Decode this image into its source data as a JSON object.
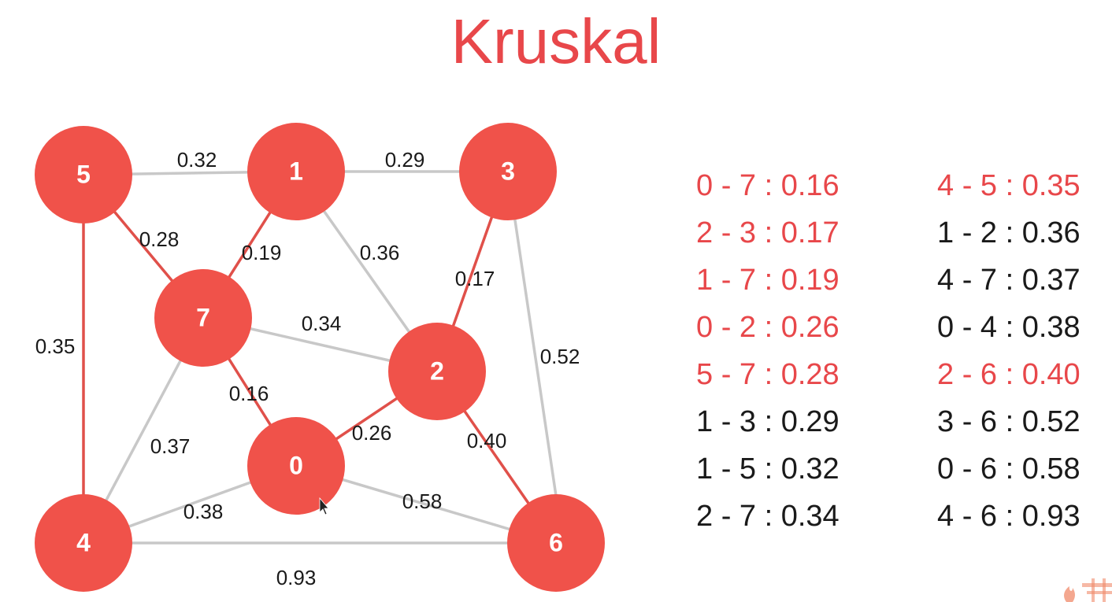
{
  "title": "Kruskal",
  "colors": {
    "accent": "#e8474a",
    "node_fill": "#f0524a",
    "mst_edge": "#e0504a",
    "other_edge": "#c8c8c8",
    "text_dark": "#1a1a1a"
  },
  "nodes": [
    {
      "id": "0",
      "label": "0"
    },
    {
      "id": "1",
      "label": "1"
    },
    {
      "id": "2",
      "label": "2"
    },
    {
      "id": "3",
      "label": "3"
    },
    {
      "id": "4",
      "label": "4"
    },
    {
      "id": "5",
      "label": "5"
    },
    {
      "id": "6",
      "label": "6"
    },
    {
      "id": "7",
      "label": "7"
    }
  ],
  "edges": [
    {
      "from": "0",
      "to": "7",
      "weight": "0.16",
      "in_mst": true
    },
    {
      "from": "2",
      "to": "3",
      "weight": "0.17",
      "in_mst": true
    },
    {
      "from": "1",
      "to": "7",
      "weight": "0.19",
      "in_mst": true
    },
    {
      "from": "0",
      "to": "2",
      "weight": "0.26",
      "in_mst": true
    },
    {
      "from": "5",
      "to": "7",
      "weight": "0.28",
      "in_mst": true
    },
    {
      "from": "1",
      "to": "3",
      "weight": "0.29",
      "in_mst": false
    },
    {
      "from": "1",
      "to": "5",
      "weight": "0.32",
      "in_mst": false
    },
    {
      "from": "2",
      "to": "7",
      "weight": "0.34",
      "in_mst": false
    },
    {
      "from": "4",
      "to": "5",
      "weight": "0.35",
      "in_mst": true
    },
    {
      "from": "1",
      "to": "2",
      "weight": "0.36",
      "in_mst": false
    },
    {
      "from": "4",
      "to": "7",
      "weight": "0.37",
      "in_mst": false
    },
    {
      "from": "0",
      "to": "4",
      "weight": "0.38",
      "in_mst": false
    },
    {
      "from": "2",
      "to": "6",
      "weight": "0.40",
      "in_mst": true
    },
    {
      "from": "3",
      "to": "6",
      "weight": "0.52",
      "in_mst": false
    },
    {
      "from": "0",
      "to": "6",
      "weight": "0.58",
      "in_mst": false
    },
    {
      "from": "4",
      "to": "6",
      "weight": "0.93",
      "in_mst": false
    }
  ],
  "edge_list_left": [
    {
      "text": "0 - 7 : 0.16",
      "highlighted": true
    },
    {
      "text": "2 - 3 : 0.17",
      "highlighted": true
    },
    {
      "text": "1 - 7 : 0.19",
      "highlighted": true
    },
    {
      "text": "0 - 2 : 0.26",
      "highlighted": true
    },
    {
      "text": "5 - 7 : 0.28",
      "highlighted": true
    },
    {
      "text": "1 - 3 : 0.29",
      "highlighted": false
    },
    {
      "text": "1 - 5 : 0.32",
      "highlighted": false
    },
    {
      "text": "2 - 7 : 0.34",
      "highlighted": false
    }
  ],
  "edge_list_right": [
    {
      "text": "4 - 5 : 0.35",
      "highlighted": true
    },
    {
      "text": "1 - 2 : 0.36",
      "highlighted": false
    },
    {
      "text": "4 - 7 : 0.37",
      "highlighted": false
    },
    {
      "text": "0 - 4 : 0.38",
      "highlighted": false
    },
    {
      "text": "2 - 6 : 0.40",
      "highlighted": true
    },
    {
      "text": "3 - 6 : 0.52",
      "highlighted": false
    },
    {
      "text": "0 - 6 : 0.58",
      "highlighted": false
    },
    {
      "text": "4 - 6 : 0.93",
      "highlighted": false
    }
  ]
}
